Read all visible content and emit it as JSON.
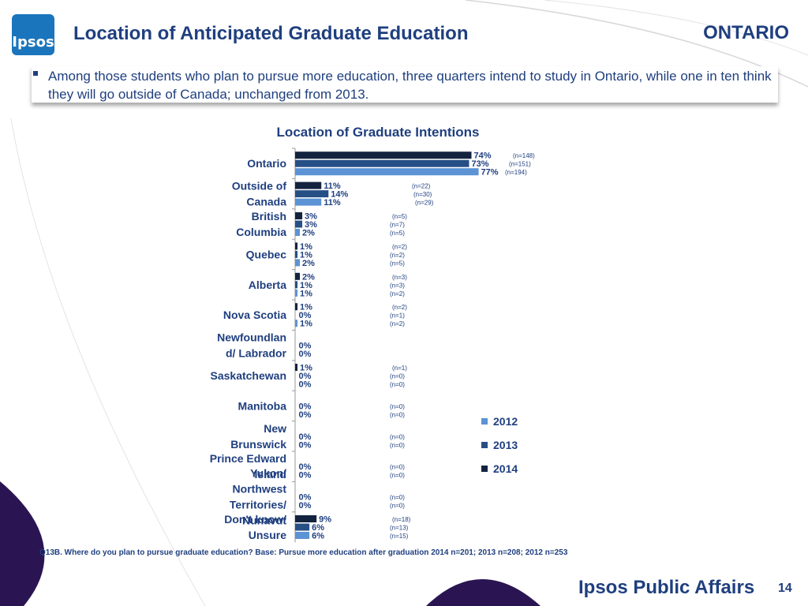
{
  "header": {
    "logo_text": "Ipsos",
    "title": "Location of Anticipated Graduate Education",
    "region": "ONTARIO"
  },
  "callout": {
    "text": "Among those students who plan to pursue more education, three quarters intend to study in Ontario, while one in ten think they will go outside of Canada; unchanged from 2013."
  },
  "footnote": "Q13B. Where do you plan to pursue graduate education? Base: Pursue more education after graduation 2014 n=201; 2013 n=208; 2012 n=253",
  "footer": {
    "brand": "Ipsos Public Affairs",
    "page_number": "14"
  },
  "colors": {
    "2014": "#13233f",
    "2013": "#264f85",
    "2012": "#5b93d4",
    "text": "#1f3f7f"
  },
  "chart_data": {
    "type": "bar",
    "orientation": "horizontal",
    "title": "Location of Graduate Intentions",
    "legend_position": "right",
    "xlim": [
      0,
      100
    ],
    "categories": [
      "Ontario",
      "Outside of Canada",
      "British Columbia",
      "Quebec",
      "Alberta",
      "Nova Scotia",
      "Newfoundland/ Labrador",
      "Saskatchewan",
      "Manitoba",
      "New Brunswick",
      "Prince Edward Island",
      "Yukon/ Northwest Territories/ Nunavut",
      "Don't know/ Unsure"
    ],
    "series": [
      {
        "name": "2014",
        "values": [
          74,
          11,
          3,
          1,
          2,
          1,
          null,
          1,
          null,
          null,
          null,
          null,
          9
        ],
        "labels": [
          "74%",
          "11%",
          "3%",
          "1%",
          "2%",
          "1%",
          "",
          "1%",
          "",
          "",
          "",
          "",
          "9%"
        ],
        "n": [
          "(n=148)",
          "(n=22)",
          "(n=5)",
          "(n=2)",
          "(n=3)",
          "(n=2)",
          "",
          "(n=1)",
          "",
          "",
          "",
          "",
          "(n=18)"
        ]
      },
      {
        "name": "2013",
        "values": [
          73,
          14,
          3,
          1,
          1,
          0,
          0,
          0,
          0,
          0,
          0,
          0,
          6
        ],
        "labels": [
          "73%",
          "14%",
          "3%",
          "1%",
          "1%",
          "0%",
          "0%",
          "0%",
          "0%",
          "0%",
          "0%",
          "0%",
          "6%"
        ],
        "n": [
          "(n=151)",
          "(n=30)",
          "(n=7)",
          "(n=2)",
          "(n=3)",
          "(n=1)",
          "",
          "(n=0)",
          "(n=0)",
          "(n=0)",
          "(n=0)",
          "(n=0)",
          "(n=13)"
        ]
      },
      {
        "name": "2012",
        "values": [
          77,
          11,
          2,
          2,
          1,
          1,
          0,
          0,
          0,
          0,
          0,
          0,
          6
        ],
        "labels": [
          "77%",
          "11%",
          "2%",
          "2%",
          "1%",
          "1%",
          "0%",
          "0%",
          "0%",
          "0%",
          "0%",
          "0%",
          "6%"
        ],
        "n": [
          "(n=194)",
          "(n=29)",
          "(n=5)",
          "(n=5)",
          "(n=2)",
          "(n=2)",
          "",
          "(n=0)",
          "(n=0)",
          "(n=0)",
          "(n=0)",
          "(n=0)",
          "(n=15)"
        ]
      }
    ]
  }
}
